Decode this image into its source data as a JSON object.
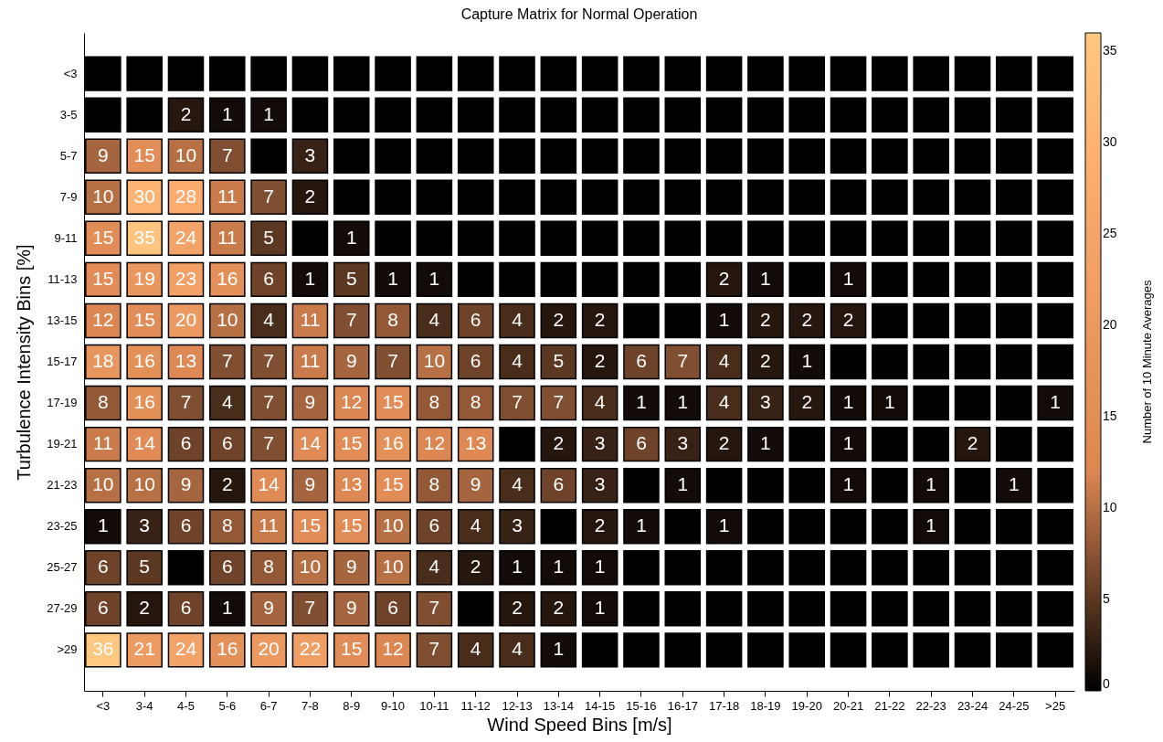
{
  "chart_data": {
    "type": "heatmap",
    "title": "Capture Matrix for Normal Operation",
    "xlabel": "Wind Speed Bins [m/s]",
    "ylabel": "Turbulence Intensity Bins [%]",
    "clabel": "Number of 10 Minute Averages",
    "categories": [
      "<3",
      "3-4",
      "4-5",
      "5-6",
      "6-7",
      "7-8",
      "8-9",
      "9-10",
      "10-11",
      "11-12",
      "12-13",
      "13-14",
      "14-15",
      "15-16",
      "16-17",
      "17-18",
      "18-19",
      "19-20",
      "20-21",
      "21-22",
      "22-23",
      "23-24",
      "24-25",
      ">25"
    ],
    "y_categories": [
      "<3",
      "3-5",
      "5-7",
      "7-9",
      "9-11",
      "11-13",
      "13-15",
      "15-17",
      "17-19",
      "19-21",
      "21-23",
      "23-25",
      "25-27",
      "27-29",
      ">29"
    ],
    "cells": [
      [
        0,
        0,
        0,
        0,
        0,
        0,
        0,
        0,
        0,
        0,
        0,
        0,
        0,
        0,
        0,
        0,
        0,
        0,
        0,
        0,
        0,
        0,
        0,
        0
      ],
      [
        0,
        0,
        2,
        1,
        1,
        0,
        0,
        0,
        0,
        0,
        0,
        0,
        0,
        0,
        0,
        0,
        0,
        0,
        0,
        0,
        0,
        0,
        0,
        0
      ],
      [
        9,
        15,
        10,
        7,
        0,
        3,
        0,
        0,
        0,
        0,
        0,
        0,
        0,
        0,
        0,
        0,
        0,
        0,
        0,
        0,
        0,
        0,
        0,
        0
      ],
      [
        10,
        30,
        28,
        11,
        7,
        2,
        0,
        0,
        0,
        0,
        0,
        0,
        0,
        0,
        0,
        0,
        0,
        0,
        0,
        0,
        0,
        0,
        0,
        0
      ],
      [
        15,
        35,
        24,
        11,
        5,
        0,
        1,
        0,
        0,
        0,
        0,
        0,
        0,
        0,
        0,
        0,
        0,
        0,
        0,
        0,
        0,
        0,
        0,
        0
      ],
      [
        15,
        19,
        23,
        16,
        6,
        1,
        5,
        1,
        1,
        0,
        0,
        0,
        0,
        0,
        0,
        2,
        1,
        0,
        1,
        0,
        0,
        0,
        0,
        0
      ],
      [
        12,
        15,
        20,
        10,
        4,
        11,
        7,
        8,
        4,
        6,
        4,
        2,
        2,
        0,
        0,
        1,
        2,
        2,
        2,
        0,
        0,
        0,
        0,
        0
      ],
      [
        18,
        16,
        13,
        7,
        7,
        11,
        9,
        7,
        10,
        6,
        4,
        5,
        2,
        6,
        7,
        4,
        2,
        1,
        0,
        0,
        0,
        0,
        0,
        0
      ],
      [
        8,
        16,
        7,
        4,
        7,
        9,
        12,
        15,
        8,
        8,
        7,
        7,
        4,
        1,
        1,
        4,
        3,
        2,
        1,
        1,
        0,
        0,
        0,
        1
      ],
      [
        11,
        14,
        6,
        6,
        7,
        14,
        15,
        16,
        12,
        13,
        0,
        2,
        3,
        6,
        3,
        2,
        1,
        0,
        1,
        0,
        0,
        2,
        0,
        0
      ],
      [
        10,
        10,
        9,
        2,
        14,
        9,
        13,
        15,
        8,
        9,
        4,
        6,
        3,
        0,
        1,
        0,
        0,
        0,
        1,
        0,
        1,
        0,
        1,
        0
      ],
      [
        1,
        3,
        6,
        8,
        11,
        15,
        15,
        10,
        6,
        4,
        3,
        0,
        2,
        1,
        0,
        1,
        0,
        0,
        0,
        0,
        1,
        0,
        0,
        0
      ],
      [
        6,
        5,
        0,
        6,
        8,
        10,
        9,
        10,
        4,
        2,
        1,
        1,
        1,
        0,
        0,
        0,
        0,
        0,
        0,
        0,
        0,
        0,
        0,
        0
      ],
      [
        6,
        2,
        6,
        1,
        9,
        7,
        9,
        6,
        7,
        0,
        2,
        2,
        1,
        0,
        0,
        0,
        0,
        0,
        0,
        0,
        0,
        0,
        0,
        0
      ],
      [
        36,
        21,
        24,
        16,
        20,
        22,
        15,
        12,
        7,
        4,
        4,
        1,
        0,
        0,
        0,
        0,
        0,
        0,
        0,
        0,
        0,
        0,
        0,
        0
      ]
    ],
    "cell_labels": [
      [
        null,
        null,
        null,
        null,
        null,
        null,
        null,
        null,
        null,
        null,
        null,
        null,
        null,
        null,
        null,
        null,
        null,
        null,
        null,
        null,
        null,
        null,
        null,
        null
      ],
      [
        null,
        null,
        "2",
        "1",
        "1",
        null,
        null,
        null,
        null,
        null,
        null,
        null,
        null,
        null,
        null,
        null,
        null,
        null,
        null,
        null,
        null,
        null,
        null,
        null
      ],
      [
        "9",
        "15",
        "10",
        "7",
        null,
        "3",
        null,
        null,
        null,
        null,
        null,
        null,
        null,
        null,
        null,
        null,
        null,
        null,
        null,
        null,
        null,
        null,
        null,
        null
      ],
      [
        "10",
        "30",
        "28",
        "11",
        "7",
        "2",
        null,
        null,
        null,
        null,
        null,
        null,
        null,
        null,
        null,
        null,
        null,
        null,
        null,
        null,
        null,
        null,
        null,
        null
      ],
      [
        "15",
        "35",
        "24",
        "11",
        "5",
        null,
        "1",
        null,
        null,
        null,
        null,
        null,
        null,
        null,
        null,
        null,
        null,
        null,
        null,
        null,
        null,
        null,
        null,
        null
      ],
      [
        "15",
        "19",
        "23",
        "16",
        "6",
        "1",
        "5",
        "1",
        "1",
        null,
        null,
        null,
        null,
        null,
        null,
        "2",
        "1",
        null,
        "1",
        null,
        null,
        null,
        null,
        null
      ],
      [
        "12",
        "15",
        "20",
        "10",
        "4",
        "11",
        "7",
        "8",
        "4",
        "6",
        "4",
        "2",
        "2",
        null,
        null,
        "1",
        "2",
        "2",
        "2",
        null,
        null,
        null,
        null,
        null
      ],
      [
        "18",
        "16",
        "13",
        "7",
        "7",
        "11",
        "9",
        "7",
        "10",
        "6",
        "4",
        "5",
        "2",
        "6",
        "7",
        "4",
        "2",
        "1",
        null,
        null,
        null,
        null,
        null,
        null
      ],
      [
        "8",
        "16",
        "7",
        "4",
        "7",
        "9",
        "12",
        "15",
        "8",
        "8",
        "7",
        "7",
        "4",
        "1",
        "1",
        "4",
        "3",
        "2",
        "1",
        "1",
        null,
        null,
        null,
        "1"
      ],
      [
        "11",
        "14",
        "6",
        "6",
        "7",
        "14",
        "15",
        "16",
        "12",
        "13",
        null,
        "2",
        "3",
        "6",
        "3",
        "2",
        "1",
        null,
        "1",
        null,
        null,
        "2",
        null,
        null
      ],
      [
        "10",
        "10",
        "9",
        "2",
        "14",
        "9",
        "13",
        "15",
        "8",
        "9",
        "4",
        "6",
        "3",
        null,
        "1",
        null,
        null,
        null,
        "1",
        null,
        "1",
        null,
        "1",
        null
      ],
      [
        "1",
        "3",
        "6",
        "8",
        "11",
        "15",
        "15",
        "10",
        "6",
        "4",
        "3",
        null,
        "2",
        "1",
        null,
        "1",
        null,
        null,
        null,
        null,
        "1",
        null,
        null,
        null
      ],
      [
        "6",
        "5",
        null,
        "6",
        "8",
        "10",
        "9",
        "10",
        "4",
        "2",
        "1",
        "1",
        "1",
        null,
        null,
        null,
        null,
        null,
        null,
        null,
        null,
        null,
        null,
        null
      ],
      [
        "6",
        "2",
        "6",
        "1",
        "9",
        "7",
        "9",
        "6",
        "7",
        null,
        "2",
        "2",
        "1",
        null,
        null,
        null,
        null,
        null,
        null,
        null,
        null,
        null,
        null,
        null
      ],
      [
        "36",
        "21",
        "24",
        "16",
        "20",
        "22",
        "15",
        "12",
        "7",
        "4",
        "4",
        "1",
        null,
        null,
        null,
        null,
        null,
        null,
        null,
        null,
        null,
        null,
        null,
        null
      ]
    ],
    "clim": [
      0,
      36
    ],
    "cticks": [
      0,
      5,
      10,
      15,
      20,
      25,
      30,
      35
    ]
  }
}
